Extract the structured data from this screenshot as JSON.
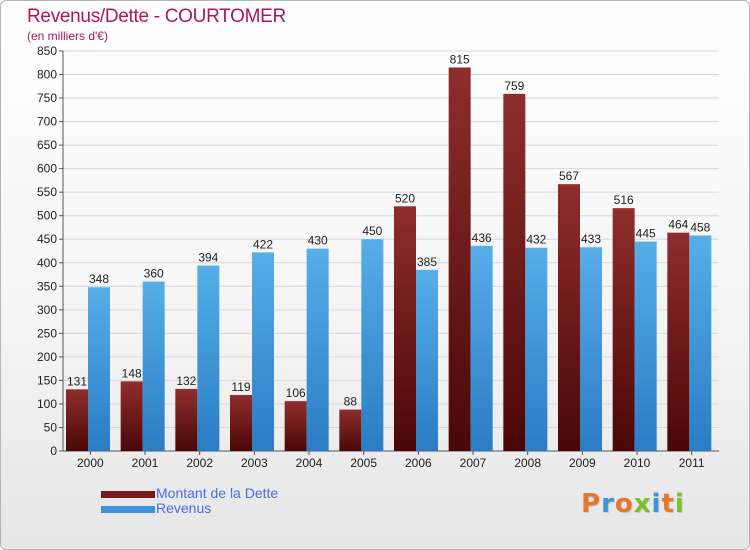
{
  "chart_data": {
    "type": "bar",
    "title": "Revenus/Dette - COURTOMER",
    "subtitle": "(en milliers d'€)",
    "categories": [
      "2000",
      "2001",
      "2002",
      "2003",
      "2004",
      "2005",
      "2006",
      "2007",
      "2008",
      "2009",
      "2010",
      "2011"
    ],
    "series": [
      {
        "name": "Montant de la Dette",
        "color": "#7a1a1a",
        "values": [
          131,
          148,
          132,
          119,
          106,
          88,
          520,
          815,
          759,
          567,
          516,
          464
        ]
      },
      {
        "name": "Revenus",
        "color": "#3d94dc",
        "values": [
          348,
          360,
          394,
          422,
          430,
          450,
          385,
          436,
          432,
          433,
          445,
          458
        ]
      }
    ],
    "ylim": [
      0,
      850
    ],
    "ytick_step": 50,
    "grid": true,
    "legend": "bottom-left"
  },
  "logo": {
    "letters": [
      "P",
      "r",
      "o",
      "x",
      "i",
      "t",
      "i"
    ],
    "colors": [
      "#e8762b",
      "#3d94dc",
      "#e8762b",
      "#7cbf2a",
      "#3d94dc",
      "#e8762b",
      "#7cbf2a"
    ]
  }
}
